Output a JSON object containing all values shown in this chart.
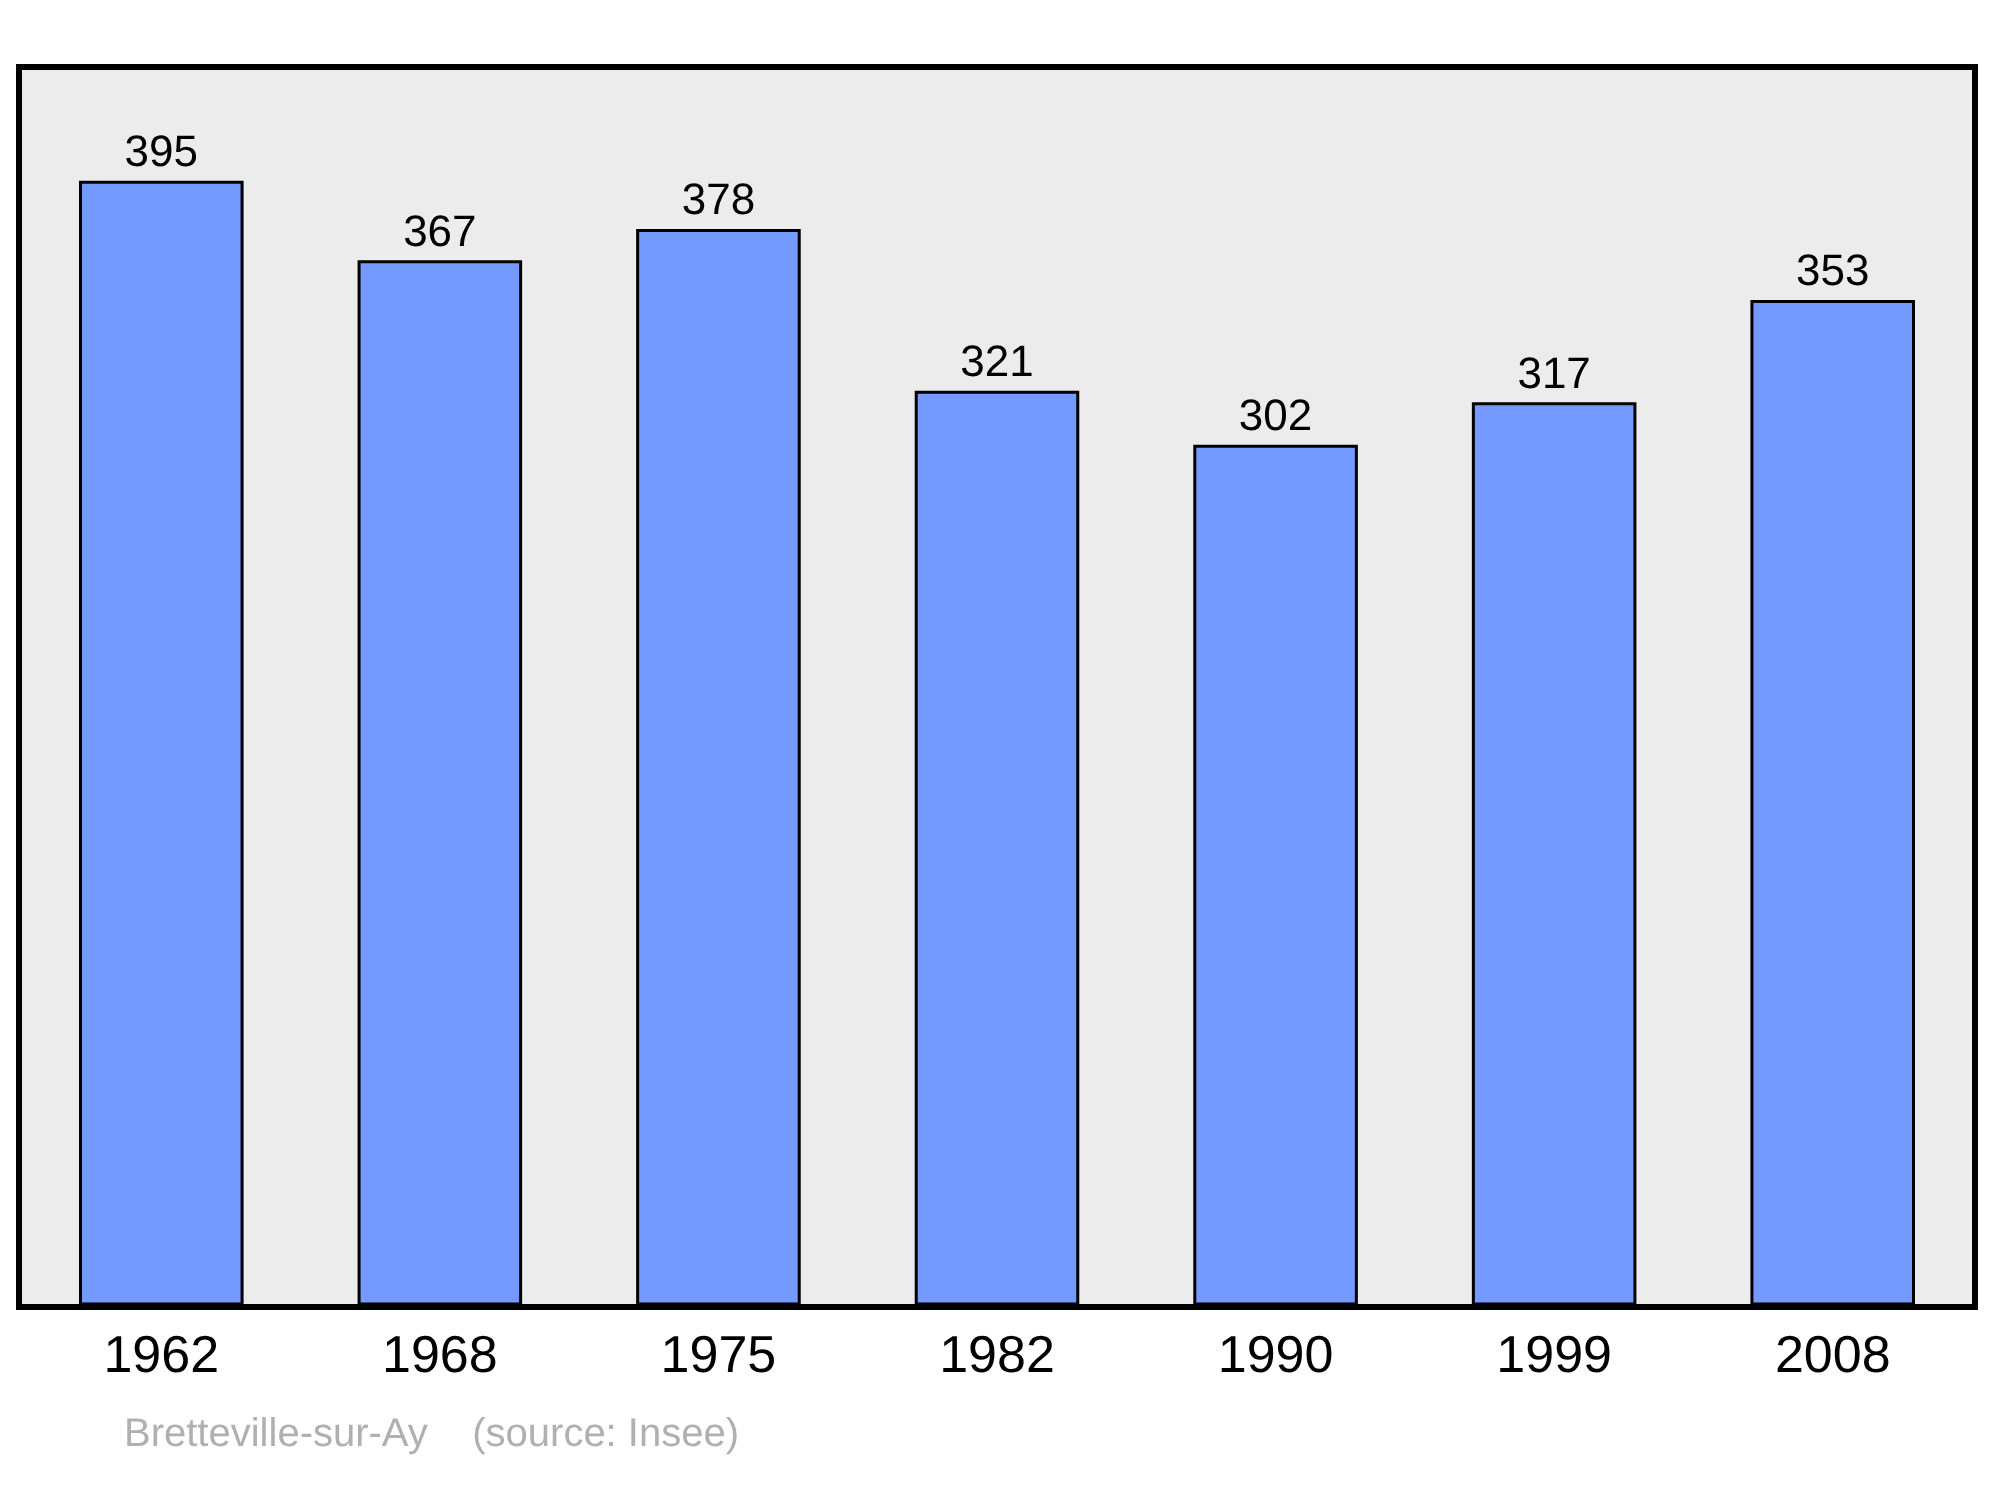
{
  "chart_data": {
    "type": "bar",
    "categories": [
      "1962",
      "1968",
      "1975",
      "1982",
      "1990",
      "1999",
      "2008"
    ],
    "values": [
      395,
      367,
      378,
      321,
      302,
      317,
      353
    ],
    "color": "#7499ff",
    "data_labels": true,
    "grid": false,
    "legend": false,
    "annotations": [
      "Bretteville-sur-Ay    (source: Insee)"
    ]
  }
}
